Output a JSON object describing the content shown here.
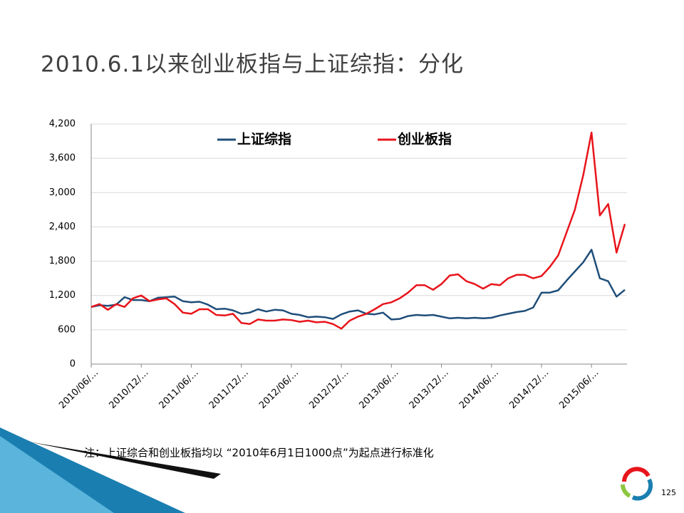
{
  "slide": {
    "title": "2010.6.1以来创业板指与上证综指：分化",
    "note": "注：上证综合和创业板指均以 “2010年6月1日1000点”为起点进行标准化",
    "page_number": "125"
  },
  "chart_data": {
    "type": "line",
    "categories": [
      "2010/06/…",
      null,
      null,
      null,
      null,
      null,
      "2010/12/…",
      null,
      null,
      null,
      null,
      null,
      "2011/06/…",
      null,
      null,
      null,
      null,
      null,
      "2011/12/…",
      null,
      null,
      null,
      null,
      null,
      "2012/06/…",
      null,
      null,
      null,
      null,
      null,
      "2012/12/…",
      null,
      null,
      null,
      null,
      null,
      "2013/06/…",
      null,
      null,
      null,
      null,
      null,
      "2013/12/…",
      null,
      null,
      null,
      null,
      null,
      "2014/06/…",
      null,
      null,
      null,
      null,
      null,
      "2014/12/…",
      null,
      null,
      null,
      null,
      null,
      "2015/06/…",
      null,
      null,
      null,
      null
    ],
    "series": [
      {
        "name": "上证综指",
        "color": "#1f4e79",
        "values": [
          1000,
          1030,
          1020,
          1040,
          1170,
          1120,
          1120,
          1100,
          1160,
          1170,
          1180,
          1100,
          1080,
          1090,
          1040,
          960,
          970,
          940,
          880,
          900,
          960,
          920,
          950,
          940,
          880,
          860,
          820,
          830,
          820,
          790,
          870,
          920,
          940,
          880,
          870,
          900,
          780,
          790,
          840,
          860,
          850,
          860,
          830,
          800,
          810,
          800,
          810,
          800,
          810,
          850,
          880,
          910,
          930,
          990,
          1250,
          1250,
          1290,
          1460,
          1620,
          1780,
          2000,
          1500,
          1450,
          1180,
          1300
        ]
      },
      {
        "name": "创业板指",
        "color": "#e8141b",
        "values": [
          1000,
          1050,
          950,
          1050,
          1000,
          1150,
          1200,
          1100,
          1130,
          1150,
          1050,
          900,
          880,
          960,
          960,
          860,
          850,
          880,
          720,
          700,
          780,
          760,
          760,
          780,
          770,
          740,
          760,
          730,
          740,
          700,
          620,
          760,
          830,
          880,
          960,
          1050,
          1080,
          1150,
          1250,
          1380,
          1380,
          1300,
          1400,
          1550,
          1570,
          1450,
          1400,
          1320,
          1400,
          1380,
          1500,
          1560,
          1560,
          1500,
          1540,
          1700,
          1900,
          2300,
          2700,
          3300,
          4050,
          2600,
          2800,
          1950,
          2450
        ]
      }
    ],
    "ylim": [
      0,
      4200
    ],
    "yticks": [
      0,
      600,
      {
        "value": 1200,
        "label": "1,200"
      },
      {
        "value": 1800,
        "label": "1,800"
      },
      {
        "value": 2400,
        "label": "2,400"
      },
      {
        "value": 3000,
        "label": "3,000"
      },
      {
        "value": 3600,
        "label": "3,600"
      },
      {
        "value": 4200,
        "label": "4,200"
      }
    ],
    "grid": true,
    "legend": "top"
  }
}
